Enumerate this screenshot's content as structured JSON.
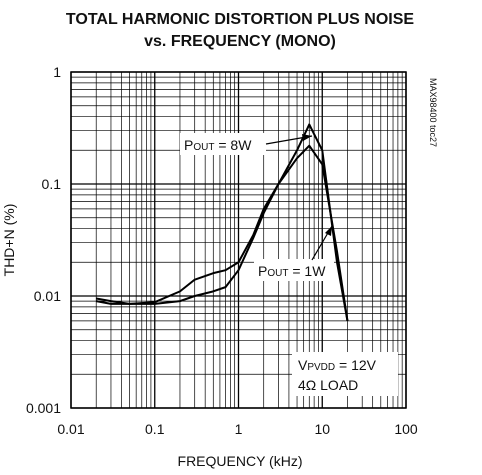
{
  "chart_data": {
    "type": "line",
    "title": [
      "TOTAL HARMONIC DISTORTION PLUS NOISE",
      "vs. FREQUENCY (MONO)"
    ],
    "xlabel": "FREQUENCY (kHz)",
    "ylabel": "THD+N (%)",
    "side_label": "MAX98400 toc27",
    "x": [
      0.02,
      0.03,
      0.05,
      0.1,
      0.2,
      0.3,
      0.5,
      0.7,
      1,
      1.5,
      2,
      3,
      5,
      7,
      10,
      15,
      20
    ],
    "series": [
      {
        "name": {
          "p": "P",
          "sub": "OUT",
          "rest": " = 8W"
        },
        "color": "#000000",
        "values": [
          0.009,
          0.0085,
          0.0085,
          0.0088,
          0.011,
          0.014,
          0.016,
          0.017,
          0.02,
          0.035,
          0.06,
          0.1,
          0.2,
          0.34,
          0.2,
          0.02,
          0.006
        ]
      },
      {
        "name": {
          "p": "P",
          "sub": "OUT",
          "rest": " = 1W"
        },
        "color": "#000000",
        "values": [
          0.0095,
          0.009,
          0.0085,
          0.0085,
          0.009,
          0.01,
          0.011,
          0.012,
          0.017,
          0.033,
          0.055,
          0.1,
          0.17,
          0.22,
          0.15,
          0.025,
          0.006
        ]
      }
    ],
    "conditions": {
      "p": "V",
      "sub": "PVDD",
      "rest": " = 12V",
      "line2": "4Ω LOAD"
    },
    "xscale": "log",
    "yscale": "log",
    "xlim": [
      0.01,
      100
    ],
    "ylim": [
      0.001,
      1
    ],
    "xticks": [
      0.01,
      0.1,
      1,
      10,
      100
    ],
    "yticks": [
      0.001,
      0.01,
      0.1,
      1
    ],
    "grid": true
  }
}
